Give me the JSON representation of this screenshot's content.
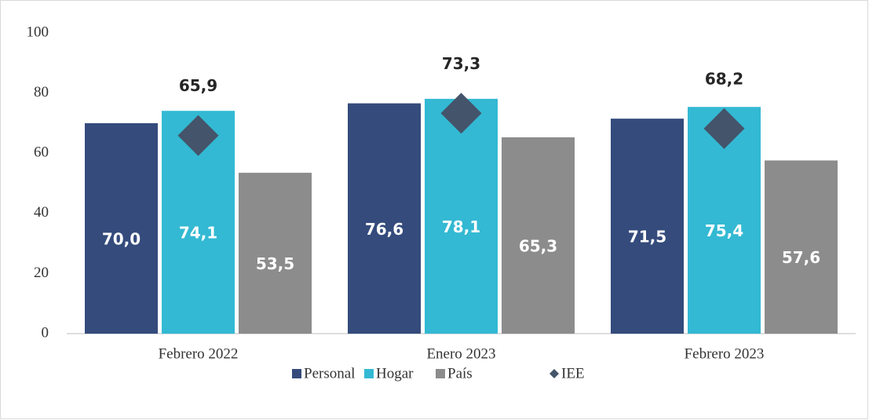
{
  "chart_data": {
    "type": "bar",
    "categories": [
      "Febrero 2022",
      "Enero 2023",
      "Febrero 2023"
    ],
    "series": [
      {
        "name": "Personal",
        "color": "#344b7c",
        "values": [
          70.0,
          76.6,
          71.5
        ],
        "value_labels": [
          "70,0",
          "76,6",
          "71,5"
        ]
      },
      {
        "name": "Hogar",
        "color": "#33b9d3",
        "values": [
          74.1,
          78.1,
          75.4
        ],
        "value_labels": [
          "74,1",
          "78,1",
          "75,4"
        ]
      },
      {
        "name": "País",
        "color": "#8c8c8c",
        "values": [
          53.5,
          65.3,
          57.6
        ],
        "value_labels": [
          "53,5",
          "65,3",
          "57,6"
        ]
      },
      {
        "name": "IEE",
        "color": "#44546a",
        "marker": "diamond",
        "values": [
          65.9,
          73.3,
          68.2
        ],
        "value_labels": [
          "65,9",
          "73,3",
          "68,2"
        ]
      }
    ],
    "ylim": [
      0,
      100
    ],
    "yticks": [
      0,
      20,
      40,
      60,
      80,
      100
    ],
    "grid": false,
    "legend": "bottom"
  }
}
